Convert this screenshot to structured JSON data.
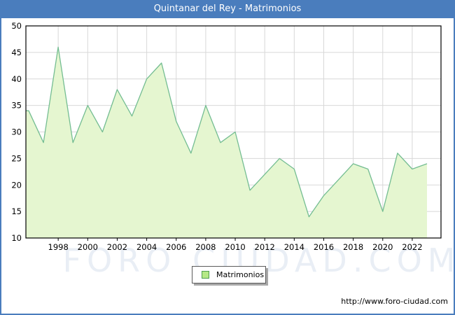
{
  "header": {
    "title": "Quintanar del Rey - Matrimonios",
    "bar_color": "#4a7dbd"
  },
  "legend": {
    "label": "Matrimonios",
    "swatch_fill": "#b6e986",
    "swatch_border": "#4f9e4f"
  },
  "watermark": {
    "text": "FORO CIUDAD.COM"
  },
  "footer": {
    "url": "http://www.foro-ciudad.com"
  },
  "chart_data": {
    "type": "area",
    "title": "Quintanar del Rey - Matrimonios",
    "x": [
      1996,
      1997,
      1998,
      1999,
      2000,
      2001,
      2002,
      2003,
      2004,
      2005,
      2006,
      2007,
      2008,
      2009,
      2010,
      2011,
      2012,
      2013,
      2014,
      2015,
      2016,
      2017,
      2018,
      2019,
      2020,
      2021,
      2022,
      2023
    ],
    "series": [
      {
        "name": "Matrimonios",
        "values": [
          34,
          28,
          46,
          28,
          35,
          30,
          38,
          33,
          40,
          43,
          32,
          26,
          35,
          28,
          30,
          19,
          22,
          25,
          23,
          14,
          18,
          21,
          24,
          23,
          15,
          26,
          23,
          24
        ]
      }
    ],
    "ylim": [
      10,
      50
    ],
    "y_ticks": [
      10,
      15,
      20,
      25,
      30,
      35,
      40,
      45,
      50
    ],
    "x_ticks": [
      1998,
      2000,
      2002,
      2004,
      2006,
      2008,
      2010,
      2012,
      2014,
      2016,
      2018,
      2020,
      2022
    ],
    "grid": true,
    "legend_position": "bottom-center",
    "line_color": "#74bd92",
    "fill_color": "#e5f6d0",
    "grid_color": "#d8d8d8",
    "axis_color": "#000000"
  }
}
